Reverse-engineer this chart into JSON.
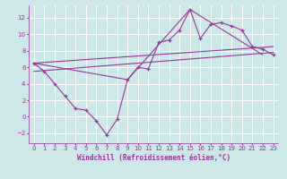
{
  "xlabel": "Windchill (Refroidissement éolien,°C)",
  "bg_color": "#cce8e8",
  "grid_color": "#ffffff",
  "line_color": "#993399",
  "marker": "+",
  "xlim": [
    -0.5,
    23.5
  ],
  "ylim": [
    -3.2,
    13.5
  ],
  "xticks": [
    0,
    1,
    2,
    3,
    4,
    5,
    6,
    7,
    8,
    9,
    10,
    11,
    12,
    13,
    14,
    15,
    16,
    17,
    18,
    19,
    20,
    21,
    22,
    23
  ],
  "yticks": [
    -2,
    0,
    2,
    4,
    6,
    8,
    10,
    12
  ],
  "line1_x": [
    0,
    1,
    2,
    3,
    4,
    5,
    6,
    7,
    8,
    9,
    10,
    11,
    12,
    13,
    14,
    15,
    16,
    17,
    18,
    19,
    20,
    21,
    22,
    23
  ],
  "line1_y": [
    6.5,
    5.5,
    4.0,
    2.5,
    1.0,
    0.8,
    -0.5,
    -2.2,
    -0.3,
    4.5,
    6.0,
    5.8,
    9.0,
    9.3,
    10.5,
    13.0,
    9.5,
    11.2,
    11.4,
    11.0,
    10.5,
    8.5,
    8.2,
    7.5
  ],
  "line2_x": [
    0,
    9,
    15,
    22
  ],
  "line2_y": [
    6.5,
    4.5,
    13.0,
    7.5
  ],
  "line3_x": [
    0,
    23
  ],
  "line3_y": [
    5.5,
    7.8
  ],
  "line4_x": [
    0,
    23
  ],
  "line4_y": [
    6.5,
    8.5
  ]
}
